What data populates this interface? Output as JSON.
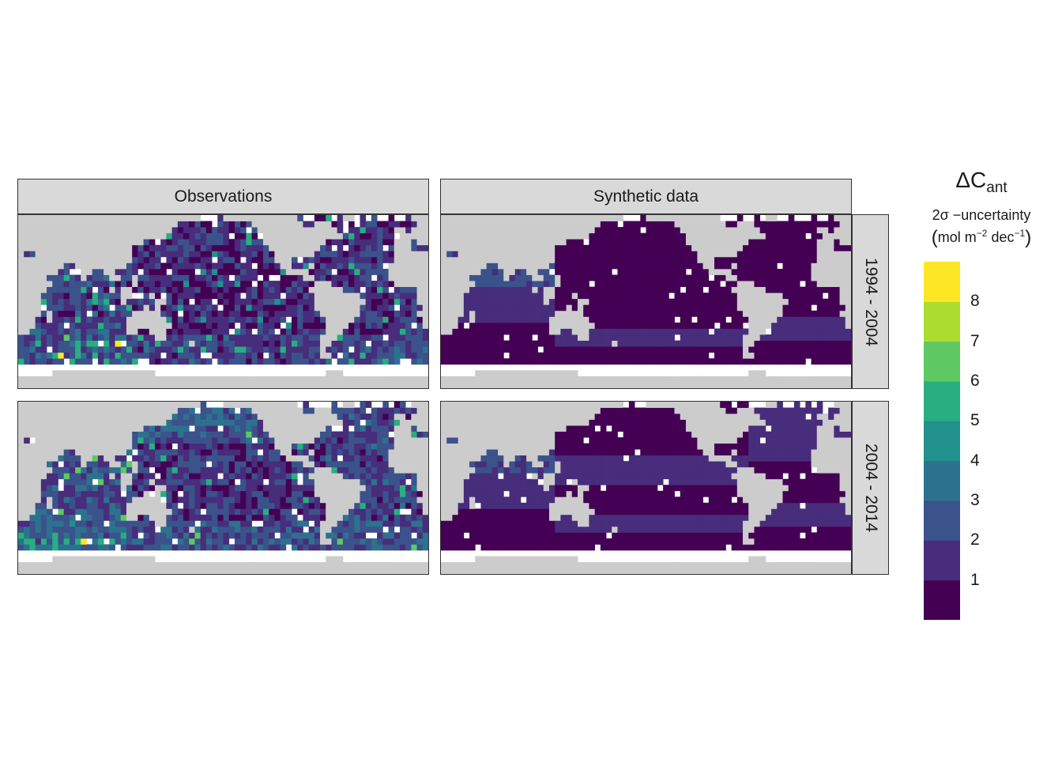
{
  "chart_data": {
    "type": "heatmap",
    "facets": {
      "columns": [
        "Observations",
        "Synthetic data"
      ],
      "rows": [
        "1994 - 2004",
        "2004 - 2014"
      ]
    },
    "legend": {
      "title_main": "ΔC",
      "title_main_sub": "ant",
      "title_line2": "2σ −uncertainty",
      "title_unit_prefix": "mol m",
      "title_unit_exp1": "−2",
      "title_unit_mid": " dec",
      "title_unit_exp2": "−1",
      "paren_open": "(",
      "paren_close": ")",
      "ticks": [
        "8",
        "7",
        "6",
        "5",
        "4",
        "3",
        "2",
        "1"
      ],
      "bins": [
        0,
        1,
        2,
        3,
        4,
        5,
        6,
        7,
        8,
        9
      ],
      "colors": [
        "#440154",
        "#472d7b",
        "#3b528b",
        "#2c728e",
        "#21918c",
        "#28ae80",
        "#5ec962",
        "#addc30",
        "#fde725"
      ],
      "placement": "right"
    },
    "map_colors": {
      "land": "#cccccc",
      "no_data": "#ffffff"
    },
    "grid_description": "Gridded global ocean map, longitude 20E to 380E, latitude 80S to 65N, 5 degree cells"
  }
}
